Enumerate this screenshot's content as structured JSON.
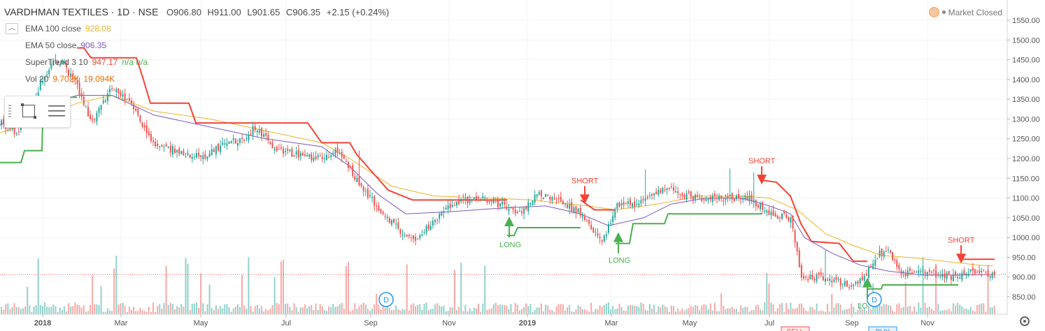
{
  "header": {
    "symbol": "VARDHMAN TEXTILES · 1D · NSE",
    "open": "O906.80",
    "high": "H911.00",
    "low": "L901.65",
    "close": "C906.35",
    "change": "+2.15 (+0.24%)"
  },
  "indicators": [
    {
      "label": "EMA 100 close",
      "value": "928.08",
      "color": "#f0b429"
    },
    {
      "label": "EMA 50 close",
      "value": "906.35",
      "color": "#7e57c2"
    },
    {
      "label": "SuperTrend 3 10",
      "value": "947.17",
      "extra": "n/a  n/a",
      "color": "#f44336"
    },
    {
      "label": "Vol 20",
      "value": "9.702K",
      "extra": "19.094K",
      "color": "#ef6c00"
    }
  ],
  "market_status": "Market Closed",
  "icons": {
    "collapse": "chevron-up-icon",
    "status": "sun-icon",
    "rect_tool": "rectangle-tool-icon",
    "menu_tool": "menu-icon",
    "settings": "gear-icon"
  },
  "colors": {
    "up": "#26a69a",
    "down": "#ef5350",
    "supertrend_up": "#4caf50",
    "supertrend_down": "#f44336",
    "ema100": "#f0b429",
    "ema50": "#7e57c2",
    "price_tag": "#ef5350"
  },
  "chart_data": {
    "type": "candlestick",
    "y_ticks": [
      850,
      900,
      950,
      1000,
      1050,
      1100,
      1150,
      1200,
      1250,
      1300,
      1350,
      1400,
      1450,
      1500,
      1550
    ],
    "y_tick_labels": [
      "850.00",
      "900.00",
      "950.00",
      "1000.00",
      "1050.00",
      "1100.00",
      "1150.00",
      "1200.00",
      "1250.00",
      "1300.00",
      "1350.00",
      "1400.00",
      "1450.00",
      "1500.00",
      "1550.00"
    ],
    "x_labels": [
      "2018",
      "Mar",
      "May",
      "Jul",
      "Sep",
      "Nov",
      "2019",
      "Mar",
      "May",
      "Jul",
      "Sep",
      "Nov"
    ],
    "last_price": 906.35,
    "last_price_label": "906.35",
    "price_anchors": [
      [
        0,
        1290
      ],
      [
        25,
        1265
      ],
      [
        55,
        1380
      ],
      [
        75,
        1450
      ],
      [
        90,
        1440
      ],
      [
        110,
        1380
      ],
      [
        130,
        1290
      ],
      [
        160,
        1380
      ],
      [
        190,
        1330
      ],
      [
        215,
        1240
      ],
      [
        250,
        1220
      ],
      [
        290,
        1200
      ],
      [
        320,
        1240
      ],
      [
        345,
        1250
      ],
      [
        365,
        1280
      ],
      [
        390,
        1230
      ],
      [
        420,
        1210
      ],
      [
        460,
        1200
      ],
      [
        480,
        1220
      ],
      [
        500,
        1170
      ],
      [
        520,
        1120
      ],
      [
        545,
        1060
      ],
      [
        570,
        1020
      ],
      [
        590,
        990
      ],
      [
        620,
        1040
      ],
      [
        650,
        1090
      ],
      [
        690,
        1100
      ],
      [
        720,
        1080
      ],
      [
        745,
        1060
      ],
      [
        765,
        1110
      ],
      [
        800,
        1090
      ],
      [
        830,
        1060
      ],
      [
        860,
        990
      ],
      [
        880,
        1080
      ],
      [
        920,
        1090
      ],
      [
        950,
        1130
      ],
      [
        990,
        1100
      ],
      [
        1030,
        1100
      ],
      [
        1070,
        1100
      ],
      [
        1100,
        1060
      ],
      [
        1130,
        1050
      ],
      [
        1145,
        900
      ],
      [
        1180,
        900
      ],
      [
        1210,
        880
      ],
      [
        1235,
        900
      ],
      [
        1250,
        950
      ],
      [
        1265,
        970
      ],
      [
        1290,
        910
      ],
      [
        1330,
        910
      ],
      [
        1360,
        900
      ],
      [
        1390,
        915
      ],
      [
        1420,
        905
      ]
    ],
    "ema100_anchors": [
      [
        0,
        1265
      ],
      [
        60,
        1300
      ],
      [
        110,
        1340
      ],
      [
        160,
        1360
      ],
      [
        220,
        1320
      ],
      [
        300,
        1300
      ],
      [
        380,
        1270
      ],
      [
        460,
        1240
      ],
      [
        500,
        1200
      ],
      [
        560,
        1130
      ],
      [
        620,
        1105
      ],
      [
        700,
        1100
      ],
      [
        760,
        1095
      ],
      [
        840,
        1080
      ],
      [
        880,
        1070
      ],
      [
        940,
        1085
      ],
      [
        1000,
        1105
      ],
      [
        1060,
        1105
      ],
      [
        1100,
        1100
      ],
      [
        1140,
        1070
      ],
      [
        1180,
        1010
      ],
      [
        1220,
        980
      ],
      [
        1260,
        955
      ],
      [
        1310,
        948
      ],
      [
        1350,
        940
      ],
      [
        1400,
        930
      ],
      [
        1420,
        928
      ]
    ],
    "ema50_anchors": [
      [
        0,
        1285
      ],
      [
        60,
        1330
      ],
      [
        110,
        1360
      ],
      [
        160,
        1360
      ],
      [
        220,
        1310
      ],
      [
        300,
        1280
      ],
      [
        380,
        1250
      ],
      [
        460,
        1230
      ],
      [
        500,
        1180
      ],
      [
        540,
        1110
      ],
      [
        580,
        1060
      ],
      [
        640,
        1065
      ],
      [
        720,
        1075
      ],
      [
        780,
        1080
      ],
      [
        830,
        1060
      ],
      [
        870,
        1030
      ],
      [
        920,
        1050
      ],
      [
        960,
        1085
      ],
      [
        1010,
        1100
      ],
      [
        1060,
        1100
      ],
      [
        1100,
        1080
      ],
      [
        1130,
        1060
      ],
      [
        1150,
        1000
      ],
      [
        1190,
        960
      ],
      [
        1230,
        930
      ],
      [
        1270,
        915
      ],
      [
        1320,
        905
      ],
      [
        1370,
        905
      ],
      [
        1420,
        906
      ]
    ],
    "supertrend": [
      {
        "dir": "up",
        "points": [
          [
            0,
            1190
          ],
          [
            30,
            1190
          ],
          [
            35,
            1220
          ],
          [
            60,
            1220
          ],
          [
            62,
            1355
          ],
          [
            110,
            1355
          ]
        ]
      },
      {
        "dir": "down",
        "points": [
          [
            110,
            1480
          ],
          [
            120,
            1480
          ],
          [
            130,
            1455
          ],
          [
            195,
            1455
          ],
          [
            205,
            1400
          ],
          [
            215,
            1340
          ],
          [
            270,
            1340
          ],
          [
            280,
            1290
          ],
          [
            440,
            1290
          ],
          [
            460,
            1240
          ],
          [
            500,
            1240
          ],
          [
            510,
            1210
          ],
          [
            530,
            1170
          ],
          [
            555,
            1120
          ],
          [
            590,
            1095
          ],
          [
            725,
            1095
          ]
        ]
      },
      {
        "dir": "up",
        "points": [
          [
            725,
            1005
          ],
          [
            735,
            1005
          ],
          [
            740,
            1025
          ],
          [
            830,
            1025
          ]
        ]
      },
      {
        "dir": "down",
        "points": [
          [
            830,
            1095
          ],
          [
            850,
            1070
          ],
          [
            880,
            1070
          ]
        ]
      },
      {
        "dir": "up",
        "points": [
          [
            880,
            985
          ],
          [
            900,
            985
          ],
          [
            905,
            1035
          ],
          [
            950,
            1035
          ],
          [
            955,
            1060
          ],
          [
            1090,
            1060
          ]
        ]
      },
      {
        "dir": "down",
        "points": [
          [
            1090,
            1145
          ],
          [
            1110,
            1140
          ],
          [
            1130,
            1105
          ],
          [
            1145,
            1035
          ],
          [
            1160,
            990
          ],
          [
            1200,
            985
          ],
          [
            1220,
            940
          ],
          [
            1240,
            940
          ]
        ]
      },
      {
        "dir": "up",
        "points": [
          [
            1240,
            870
          ],
          [
            1260,
            870
          ],
          [
            1262,
            880
          ],
          [
            1370,
            880
          ]
        ]
      },
      {
        "dir": "down",
        "points": [
          [
            1372,
            945
          ],
          [
            1422,
            945
          ]
        ]
      }
    ],
    "signals": [
      {
        "type": "long",
        "label": "LONG",
        "x": 728
      },
      {
        "type": "short",
        "label": "SHORT",
        "x": 836
      },
      {
        "type": "long",
        "label": "LONG",
        "x": 884
      },
      {
        "type": "short",
        "label": "SHORT",
        "x": 1089
      },
      {
        "type": "long",
        "label": "LO",
        "x": 1240
      },
      {
        "type": "short",
        "label": "SHORT",
        "x": 1374
      }
    ],
    "dividend_markers": [
      {
        "label": "D",
        "x": 552
      },
      {
        "label": "D",
        "x": 1250
      }
    ],
    "bottom_buttons": [
      {
        "label": "SELL",
        "x": 1117
      },
      {
        "label": "BUY",
        "x": 1242
      }
    ]
  }
}
